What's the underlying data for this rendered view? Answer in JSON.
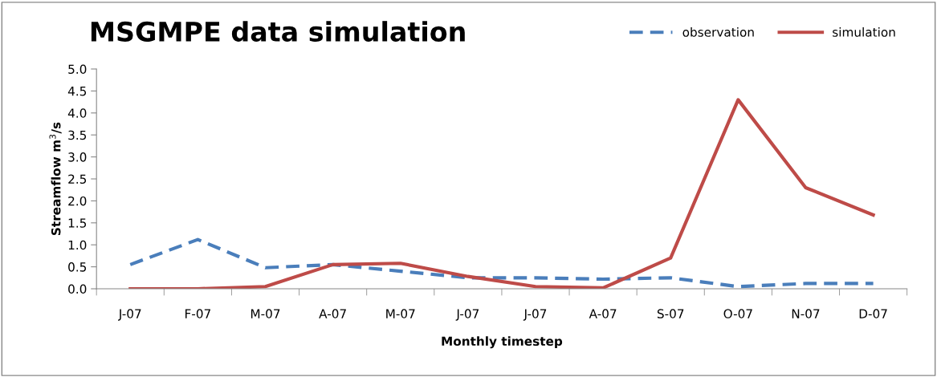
{
  "chart_data": {
    "type": "line",
    "title": "MSGMPE data simulation",
    "xlabel": "Monthly timestep",
    "ylabel": "Streamflow m$^{3}$/s",
    "categories": [
      "J-07",
      "F-07",
      "M-07",
      "A-07",
      "M-07",
      "J-07",
      "J-07",
      "A-07",
      "S-07",
      "O-07",
      "N-07",
      "D-07"
    ],
    "series": [
      {
        "name": "observation",
        "color": "#4a7ebb",
        "line_style": "dashed",
        "values": [
          0.55,
          1.12,
          0.48,
          0.55,
          0.4,
          0.25,
          0.25,
          0.22,
          0.25,
          0.05,
          0.12,
          0.12
        ]
      },
      {
        "name": "simulation",
        "color": "#be4b48",
        "line_style": "solid",
        "values": [
          0.0,
          0.0,
          0.05,
          0.55,
          0.58,
          0.28,
          0.05,
          0.02,
          0.7,
          4.3,
          2.3,
          1.68
        ]
      }
    ],
    "ylim": [
      0,
      5
    ],
    "yticks": [
      {
        "value": 0,
        "label": "0.0"
      },
      {
        "value": 0.5,
        "label": "0.5"
      },
      {
        "value": 1,
        "label": "1.0"
      },
      {
        "value": 1.5,
        "label": "1.5"
      },
      {
        "value": 2,
        "label": "2.0"
      },
      {
        "value": 2.5,
        "label": "2.5"
      },
      {
        "value": 3,
        "label": "3.0"
      },
      {
        "value": 3.5,
        "label": "3.5"
      },
      {
        "value": 4,
        "label": "4.0"
      },
      {
        "value": 4.5,
        "label": "4.5"
      },
      {
        "value": 5,
        "label": "5.0"
      }
    ],
    "grid": false,
    "legend": "top right",
    "marker": "none"
  }
}
